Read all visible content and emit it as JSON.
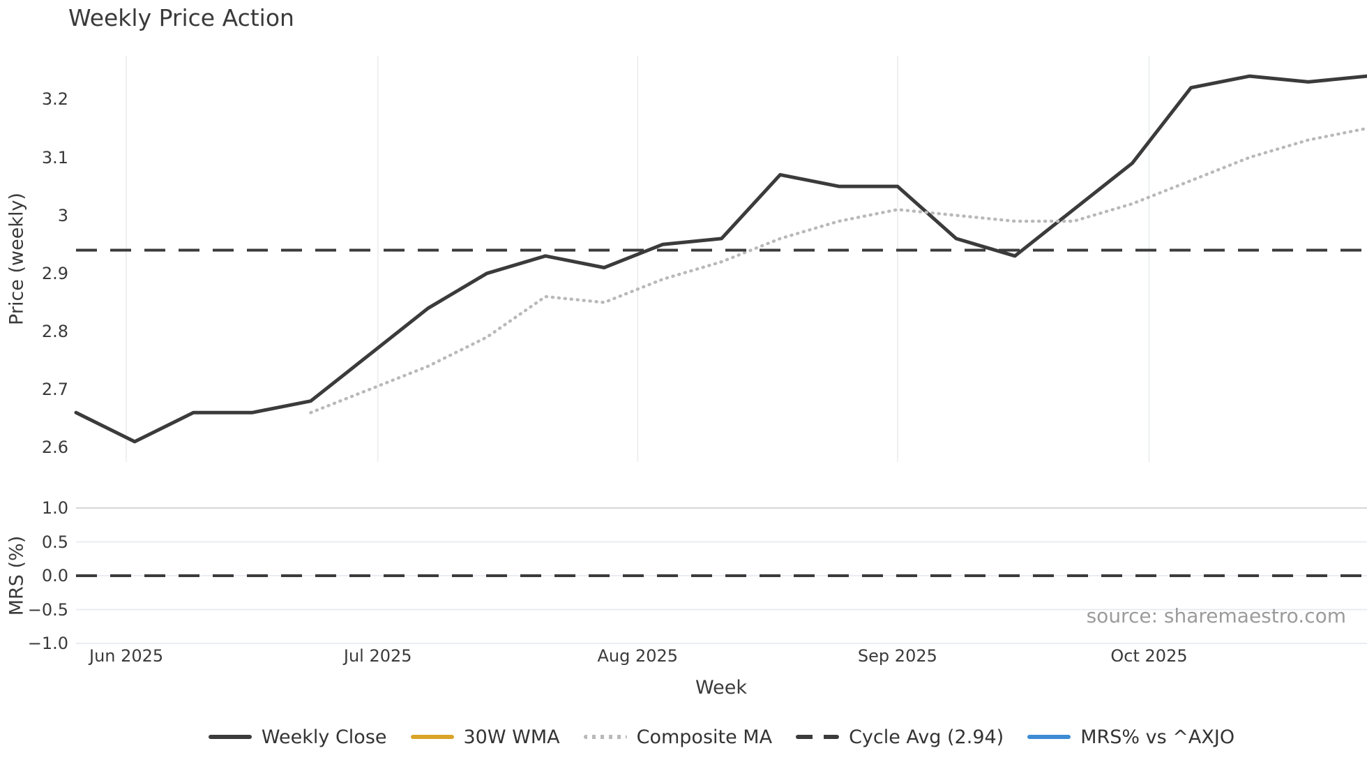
{
  "title": "Weekly Price Action",
  "source_note": "source: sharemaestro.com",
  "chart_data": {
    "type": "line",
    "title": "Weekly Price Action",
    "x_axis": {
      "label": "Week",
      "tick_labels": [
        "Jun 2025",
        "Jul 2025",
        "Aug 2025",
        "Sep 2025",
        "Oct 2025"
      ],
      "tick_week_positions": [
        0.857,
        5.143,
        9.571,
        14.0,
        18.286
      ],
      "weeks_total": 23,
      "grid": "vertical-on-price-panel-only"
    },
    "price_panel": {
      "ylabel": "Price (weekly)",
      "ylim": [
        2.575,
        3.275
      ],
      "tick_values": [
        3.2,
        3.1,
        3.0,
        2.9,
        2.8,
        2.7,
        2.6
      ],
      "tick_labels": [
        "3.2",
        "3.1",
        "3",
        "2.9",
        "2.8",
        "2.7",
        "2.6"
      ],
      "series": [
        {
          "name": "Weekly Close",
          "color": "#3b3b3b",
          "style": "solid",
          "start_week": 0,
          "values": [
            2.66,
            2.61,
            2.66,
            2.66,
            2.68,
            2.76,
            2.84,
            2.9,
            2.93,
            2.91,
            2.95,
            2.96,
            3.07,
            3.05,
            3.05,
            2.96,
            2.93,
            3.01,
            3.09,
            3.22,
            3.24,
            3.23,
            3.24
          ]
        },
        {
          "name": "30W WMA",
          "color": "#d9a427",
          "style": "solid",
          "start_week": 0,
          "values": []
        },
        {
          "name": "Composite MA",
          "color": "#b9b9b9",
          "style": "dotted",
          "start_week": 4,
          "values": [
            2.66,
            2.7,
            2.74,
            2.79,
            2.86,
            2.85,
            2.89,
            2.92,
            2.96,
            2.99,
            3.01,
            3.0,
            2.99,
            2.99,
            3.02,
            3.06,
            3.1,
            3.13,
            3.15
          ]
        },
        {
          "name": "Cycle Avg (2.94)",
          "color": "#3b3b3b",
          "style": "dashed",
          "constant_value": 2.94
        }
      ]
    },
    "mrs_panel": {
      "ylabel": "MRS (%)",
      "ylim": [
        -1.0,
        1.0
      ],
      "tick_values": [
        1.0,
        0.5,
        0.0,
        -0.5,
        -1.0
      ],
      "tick_labels": [
        "1.0",
        "0.5",
        "0.0",
        "−0.5",
        "−1.0"
      ],
      "zero_line": {
        "value": 0.0,
        "color": "#3b3b3b",
        "style": "dashed"
      },
      "series": [
        {
          "name": "MRS% vs ^AXJO",
          "color": "#3d8bd4",
          "style": "solid",
          "values": []
        }
      ]
    },
    "legend": [
      {
        "label": "Weekly Close",
        "color": "#3b3b3b",
        "style": "solid"
      },
      {
        "label": "30W WMA",
        "color": "#d9a427",
        "style": "solid"
      },
      {
        "label": "Composite MA",
        "color": "#b9b9b9",
        "style": "dotted"
      },
      {
        "label": "Cycle Avg (2.94)",
        "color": "#3b3b3b",
        "style": "dashed"
      },
      {
        "label": "MRS% vs ^AXJO",
        "color": "#3d8bd4",
        "style": "solid"
      }
    ],
    "colors": {
      "price_gridline": "#eeeff2",
      "mrs_gridline_major": "#d6d6d6",
      "mrs_gridline_minor": "#e9edf3",
      "tick_text": "#3a3a3a",
      "source_text": "#9b9b9b"
    }
  }
}
